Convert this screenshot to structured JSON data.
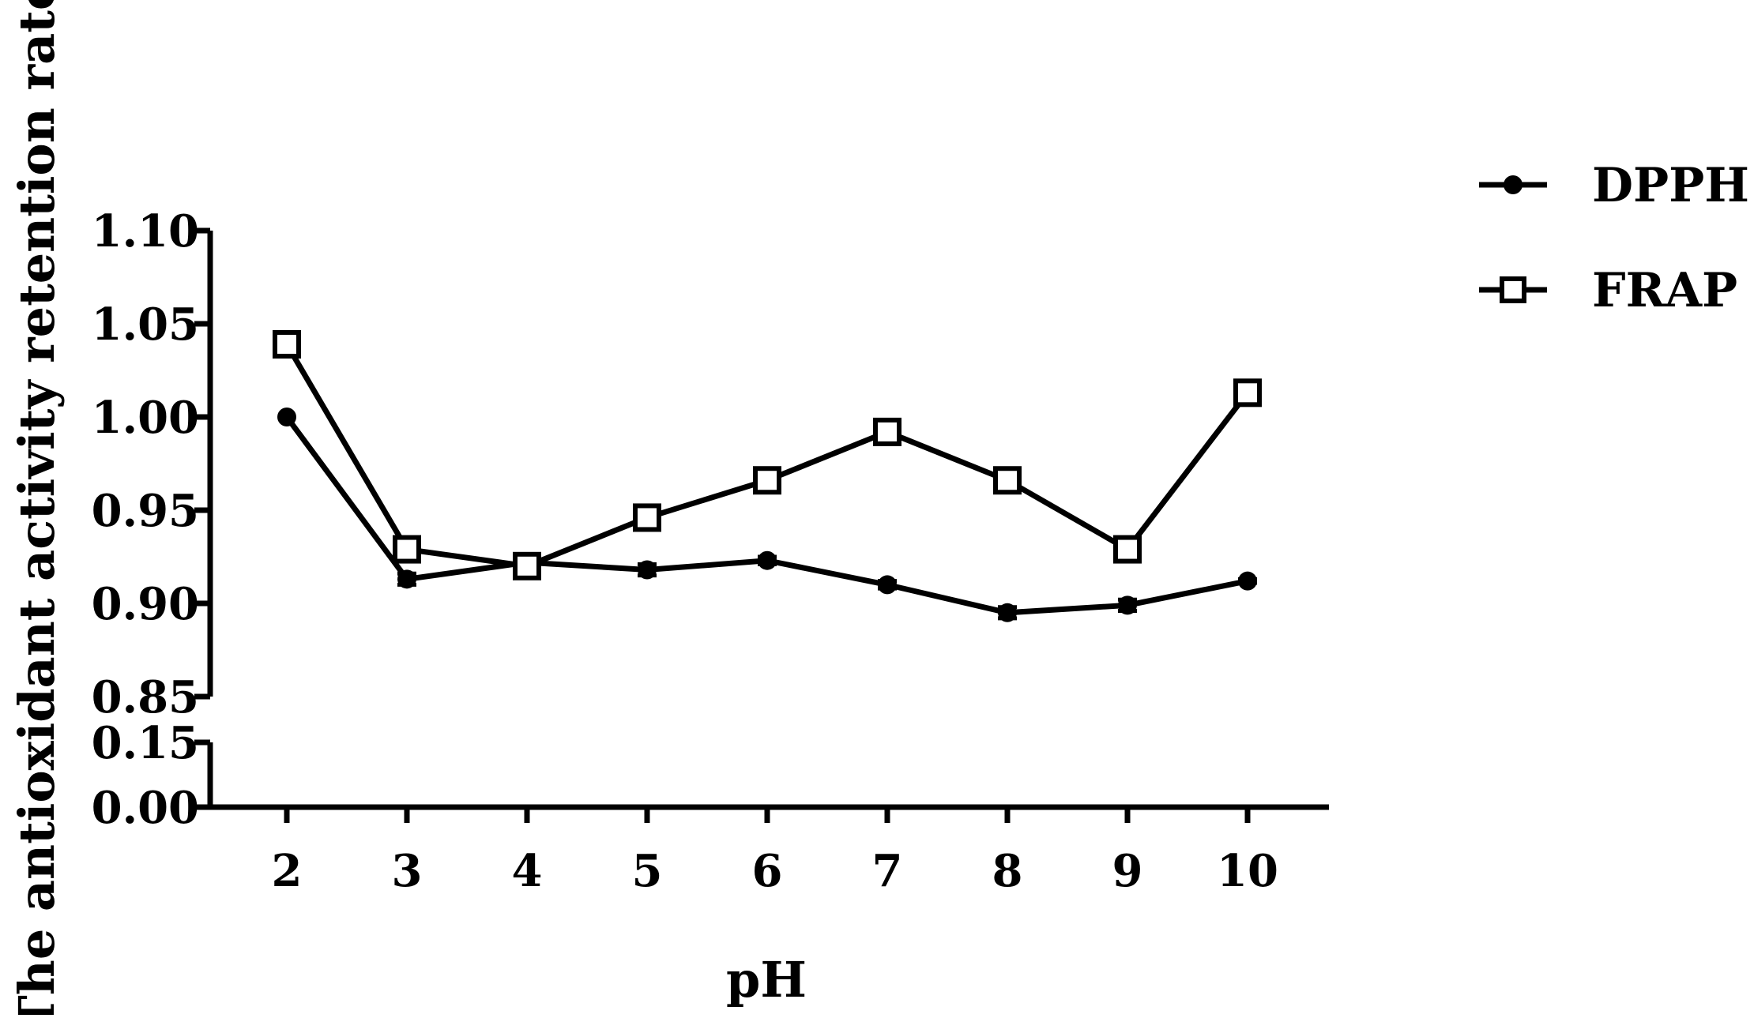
{
  "chart_data": {
    "type": "line",
    "xlabel": "pH",
    "ylabel": "The antioxidant activity retention rate",
    "categories": [
      "2",
      "3",
      "4",
      "5",
      "6",
      "7",
      "8",
      "9",
      "10"
    ],
    "x": [
      2,
      3,
      4,
      5,
      6,
      7,
      8,
      9,
      10
    ],
    "xlim": [
      1.3,
      10.7
    ],
    "y_axis_break": {
      "lower_range": [
        0.0,
        0.15
      ],
      "upper_range": [
        0.85,
        1.1
      ]
    },
    "y_tick_labels_lower": [
      "0.00",
      "0.15"
    ],
    "y_tick_values_lower": [
      0.0,
      0.15
    ],
    "y_tick_labels_upper": [
      "0.85",
      "0.90",
      "0.95",
      "1.00",
      "1.05",
      "1.10"
    ],
    "y_tick_values_upper": [
      0.85,
      0.9,
      0.95,
      1.0,
      1.05,
      1.1
    ],
    "legend_position": "top-right",
    "grid": false,
    "series": [
      {
        "name": "DPPH",
        "marker": "filled-circle",
        "color": "#000000",
        "values": [
          1.0,
          0.913,
          0.922,
          0.918,
          0.923,
          0.91,
          0.895,
          0.899,
          0.912
        ],
        "errors": [
          0.0,
          0.003,
          0.002,
          0.003,
          0.002,
          0.002,
          0.003,
          0.003,
          0.001
        ]
      },
      {
        "name": "FRAP",
        "marker": "open-square",
        "color": "#000000",
        "values": [
          1.039,
          0.929,
          0.92,
          0.946,
          0.966,
          0.992,
          0.966,
          0.929,
          1.013
        ],
        "errors": [
          0.0,
          0.0,
          0.0,
          0.0,
          0.0,
          0.0,
          0.0,
          0.0,
          0.0
        ]
      }
    ]
  }
}
